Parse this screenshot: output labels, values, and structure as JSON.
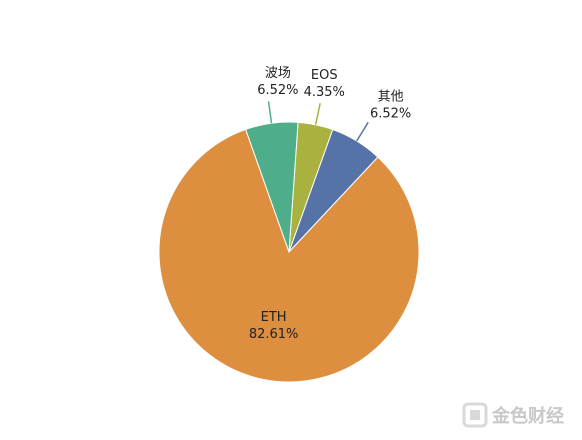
{
  "chart_data": {
    "type": "pie",
    "categories": [
      "EOS",
      "其他",
      "ETH",
      "波场"
    ],
    "values": [
      4.35,
      6.52,
      82.61,
      6.52
    ],
    "value_labels": [
      "4.35%",
      "6.52%",
      "82.61%",
      "6.52%"
    ],
    "colors": [
      "#a9b13f",
      "#5673a8",
      "#dd8e3f",
      "#4fae8a"
    ]
  },
  "watermark": "金色财经"
}
